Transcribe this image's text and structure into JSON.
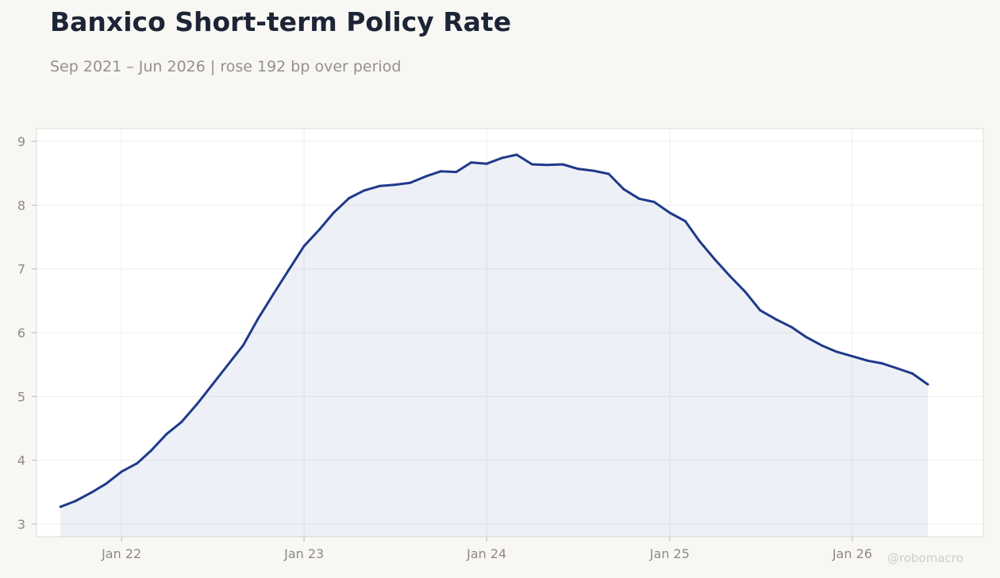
{
  "title": "Banxico Short-term Policy Rate",
  "subtitle": "Sep 2021 – Jun 2026 | rose 192 bp over period",
  "watermark": "@robomacro",
  "colors": {
    "line": "#1f3a8a",
    "fill": "#1f3a8a",
    "background": "#f8f7f4",
    "plot_bg": "#ffffff"
  },
  "chart_data": {
    "type": "area",
    "title": "Banxico Short-term Policy Rate",
    "subtitle": "Sep 2021 – Jun 2026 | rose 192 bp over period",
    "xlabel": "",
    "ylabel": "",
    "ylim": [
      2.8,
      9.2
    ],
    "xlim": [
      "2021-07-15",
      "2026-09-20"
    ],
    "grid": true,
    "x_ticks": [
      {
        "date": "2022-01-01",
        "label": "Jan 22"
      },
      {
        "date": "2023-01-01",
        "label": "Jan 23"
      },
      {
        "date": "2024-01-01",
        "label": "Jan 24"
      },
      {
        "date": "2025-01-01",
        "label": "Jan 25"
      },
      {
        "date": "2026-01-01",
        "label": "Jan 26"
      }
    ],
    "y_ticks": [
      3,
      4,
      5,
      6,
      7,
      8,
      9
    ],
    "series": [
      {
        "x": [
          "2021-09-01",
          "2021-10-01",
          "2021-11-01",
          "2021-12-01",
          "2022-01-01",
          "2022-02-01",
          "2022-03-01",
          "2022-04-01",
          "2022-05-01",
          "2022-06-01",
          "2022-07-01",
          "2022-08-01",
          "2022-09-01",
          "2022-10-01",
          "2022-11-01",
          "2022-12-01",
          "2023-01-01",
          "2023-02-01",
          "2023-03-01",
          "2023-04-01",
          "2023-05-01",
          "2023-06-01",
          "2023-07-01",
          "2023-08-01",
          "2023-09-01",
          "2023-10-01",
          "2023-11-01",
          "2023-12-01",
          "2024-01-01",
          "2024-02-01",
          "2024-03-01",
          "2024-04-01",
          "2024-05-01",
          "2024-06-01",
          "2024-07-01",
          "2024-08-01",
          "2024-09-01",
          "2024-10-01",
          "2024-11-01",
          "2024-12-01",
          "2025-01-01",
          "2025-02-01",
          "2025-03-01",
          "2025-04-01",
          "2025-05-01",
          "2025-06-01",
          "2025-07-01",
          "2025-08-01",
          "2025-09-01",
          "2025-10-01",
          "2025-11-01",
          "2025-12-01",
          "2026-01-01",
          "2026-02-01",
          "2026-03-01",
          "2026-04-01",
          "2026-05-01",
          "2026-06-01"
        ],
        "values": [
          3.27,
          3.36,
          3.49,
          3.63,
          3.82,
          3.95,
          4.15,
          4.41,
          4.6,
          4.88,
          5.18,
          5.49,
          5.8,
          6.22,
          6.61,
          6.98,
          7.36,
          7.62,
          7.88,
          8.11,
          8.23,
          8.3,
          8.32,
          8.35,
          8.45,
          8.53,
          8.52,
          8.67,
          8.65,
          8.74,
          8.79,
          8.64,
          8.63,
          8.64,
          8.57,
          8.54,
          8.49,
          8.25,
          8.1,
          8.05,
          7.88,
          7.75,
          7.44,
          7.15,
          6.89,
          6.64,
          6.35,
          6.21,
          6.09,
          5.93,
          5.8,
          5.7,
          5.63,
          5.56,
          5.52,
          5.44,
          5.36,
          5.19
        ]
      }
    ]
  }
}
